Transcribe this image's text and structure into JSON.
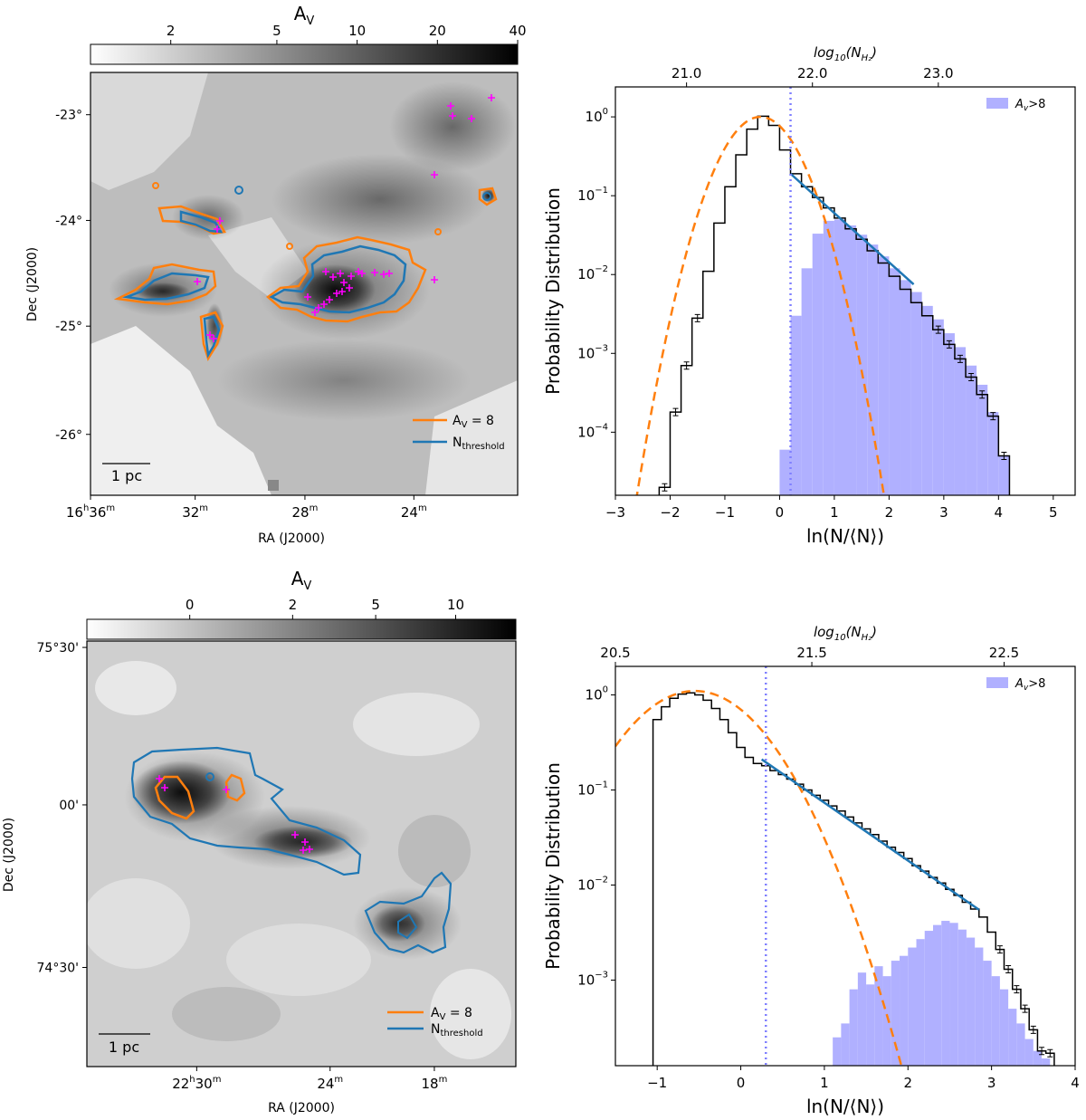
{
  "chart_data": [
    {
      "type": "heatmap",
      "panel": "top-left",
      "colorbar": {
        "title": "A",
        "title_sub": "V",
        "ticks": [
          {
            "v": 2,
            "label": "2"
          },
          {
            "v": 5,
            "label": "5"
          },
          {
            "v": 10,
            "label": "10"
          },
          {
            "v": 20,
            "label": "20"
          },
          {
            "v": 40,
            "label": "40"
          }
        ],
        "range": [
          1,
          40
        ],
        "scale": "log"
      },
      "xlabel": "RA (J2000)",
      "ylabel": "Dec (J2000)",
      "xticks": [
        {
          "main": "16",
          "sup1": "h",
          "mid": "36",
          "sup2": "m",
          "x": 0.0
        },
        {
          "main": "32",
          "sup2": "m",
          "x": 0.245
        },
        {
          "main": "28",
          "sup2": "m",
          "x": 0.502
        },
        {
          "main": "24",
          "sup2": "m",
          "x": 0.757
        }
      ],
      "yticks": [
        {
          "label": "-23°",
          "y": 0.1
        },
        {
          "label": "-24°",
          "y": 0.35
        },
        {
          "label": "-25°",
          "y": 0.6
        },
        {
          "label": "-26°",
          "y": 0.856
        }
      ],
      "legend": [
        {
          "label": "A",
          "sub": "V",
          "tail": " = 8",
          "color": "#ff7f0e"
        },
        {
          "label": "N",
          "sub": "threshold",
          "tail": "",
          "color": "#1f77b4"
        }
      ],
      "scalebar": "1 pc",
      "ysos_color": "#ff00ff"
    },
    {
      "type": "line",
      "panel": "top-right",
      "xlabel": "ln(N/⟨N⟩)",
      "ylabel": "Probability Distribution",
      "top_axis_label": "log",
      "top_axis_sub": "10",
      "top_axis_paren": "(N",
      "top_axis_sub2": "H₂",
      "xlim": [
        -3,
        5.4
      ],
      "ylim_log": [
        -4.8,
        0.38
      ],
      "xticks": [
        -3,
        -2,
        -1,
        0,
        1,
        2,
        3,
        4,
        5
      ],
      "yticks": [
        {
          "exp": 0
        },
        {
          "exp": -1
        },
        {
          "exp": -2
        },
        {
          "exp": -3
        },
        {
          "exp": -4
        }
      ],
      "top_ticks": [
        {
          "label": "21.0",
          "x": -1.7
        },
        {
          "label": "22.0",
          "x": 0.6
        },
        {
          "label": "23.0",
          "x": 2.9
        }
      ],
      "threshold_x": 0.2,
      "legend": {
        "label": "A",
        "sub": "v",
        "tail": ">8"
      },
      "series": [
        {
          "name": "pdf_histogram",
          "x": [
            -2.1,
            -1.9,
            -1.7,
            -1.5,
            -1.3,
            -1.1,
            -0.9,
            -0.7,
            -0.5,
            -0.3,
            -0.1,
            0.1,
            0.3,
            0.5,
            0.7,
            0.9,
            1.1,
            1.3,
            1.5,
            1.7,
            1.9,
            2.1,
            2.3,
            2.5,
            2.7,
            2.9,
            3.1,
            3.3,
            3.5,
            3.7,
            3.9,
            4.1
          ],
          "y": [
            2e-05,
            0.00018,
            0.0007,
            0.0028,
            0.011,
            0.045,
            0.13,
            0.33,
            0.7,
            1.02,
            0.78,
            0.38,
            0.19,
            0.13,
            0.095,
            0.07,
            0.052,
            0.038,
            0.028,
            0.02,
            0.014,
            0.0095,
            0.0065,
            0.0044,
            0.003,
            0.002,
            0.0013,
            0.00085,
            0.0005,
            0.0003,
            0.00016,
            5e-05
          ]
        },
        {
          "name": "lognormal_fit",
          "mu": -0.35,
          "sigma": 0.48,
          "peak": 1.0
        },
        {
          "name": "powerlaw_fit",
          "x": [
            0.2,
            2.45
          ],
          "y": [
            0.19,
            0.0075
          ]
        },
        {
          "name": "av_gt_8",
          "x": [
            0.1,
            0.3,
            0.5,
            0.7,
            0.9,
            1.1,
            1.3,
            1.5,
            1.7,
            1.9,
            2.1,
            2.3,
            2.5,
            2.7,
            2.9,
            3.1,
            3.3,
            3.5,
            3.7,
            3.9,
            4.1
          ],
          "y": [
            6e-05,
            0.003,
            0.012,
            0.033,
            0.048,
            0.05,
            0.042,
            0.032,
            0.024,
            0.017,
            0.012,
            0.0085,
            0.006,
            0.004,
            0.0027,
            0.0018,
            0.0012,
            0.0007,
            0.0004,
            0.00018,
            5e-05
          ]
        }
      ]
    },
    {
      "type": "heatmap",
      "panel": "bottom-left",
      "colorbar": {
        "title": "A",
        "title_sub": "V",
        "ticks": [
          {
            "v": 0,
            "label": "0"
          },
          {
            "v": 2,
            "label": "2"
          },
          {
            "v": 5,
            "label": "5"
          },
          {
            "v": 10,
            "label": "10"
          }
        ],
        "range": [
          -1,
          16
        ]
      },
      "xlabel": "RA (J2000)",
      "ylabel": "Dec (J2000)",
      "xticks": [
        {
          "main": "22",
          "sup1": "h",
          "mid": "30",
          "sup2": "m",
          "x": 0.256
        },
        {
          "main": "24",
          "sup2": "m",
          "x": 0.567
        },
        {
          "main": "18",
          "sup2": "m",
          "x": 0.81
        }
      ],
      "yticks": [
        {
          "label": "75°30'",
          "y": 0.015
        },
        {
          "label": "00'",
          "y": 0.385
        },
        {
          "label": "74°30'",
          "y": 0.767
        }
      ],
      "legend": [
        {
          "label": "A",
          "sub": "V",
          "tail": " = 8",
          "color": "#ff7f0e"
        },
        {
          "label": "N",
          "sub": "threshold",
          "tail": "",
          "color": "#1f77b4"
        }
      ],
      "scalebar": "1 pc",
      "ysos_color": "#ff00ff"
    },
    {
      "type": "line",
      "panel": "bottom-right",
      "xlabel": "ln(N/⟨N⟩)",
      "ylabel": "Probability Distribution",
      "top_axis_label": "log",
      "top_axis_sub": "10",
      "top_axis_paren": "(N",
      "top_axis_sub2": "H₂",
      "xlim": [
        -1.5,
        4.0
      ],
      "ylim_log": [
        -3.9,
        0.3
      ],
      "xticks": [
        -1,
        0,
        1,
        2,
        3,
        4
      ],
      "yticks": [
        {
          "exp": 0
        },
        {
          "exp": -1
        },
        {
          "exp": -2
        },
        {
          "exp": -3
        }
      ],
      "top_ticks": [
        {
          "label": "20.5",
          "x": -1.5
        },
        {
          "label": "21.5",
          "x": 0.85
        },
        {
          "label": "22.5",
          "x": 3.15
        }
      ],
      "threshold_x": 0.3,
      "legend": {
        "label": "A",
        "sub": "v",
        "tail": ">8"
      },
      "series": [
        {
          "name": "pdf_histogram",
          "x": [
            -1.0,
            -0.9,
            -0.8,
            -0.7,
            -0.6,
            -0.5,
            -0.4,
            -0.3,
            -0.2,
            -0.1,
            0.0,
            0.1,
            0.2,
            0.3,
            0.4,
            0.5,
            0.6,
            0.7,
            0.8,
            0.9,
            1.0,
            1.1,
            1.2,
            1.3,
            1.4,
            1.5,
            1.6,
            1.7,
            1.8,
            1.9,
            2.0,
            2.1,
            2.2,
            2.3,
            2.4,
            2.5,
            2.6,
            2.7,
            2.8,
            2.9,
            3.0,
            3.1,
            3.2,
            3.3,
            3.4,
            3.5,
            3.6,
            3.7
          ],
          "y": [
            0.55,
            0.75,
            0.92,
            1.02,
            1.05,
            1.0,
            0.88,
            0.72,
            0.55,
            0.4,
            0.28,
            0.22,
            0.19,
            0.18,
            0.16,
            0.145,
            0.13,
            0.115,
            0.1,
            0.088,
            0.078,
            0.068,
            0.06,
            0.052,
            0.045,
            0.039,
            0.034,
            0.029,
            0.025,
            0.022,
            0.019,
            0.016,
            0.014,
            0.012,
            0.0105,
            0.009,
            0.0078,
            0.0066,
            0.0056,
            0.0046,
            0.0032,
            0.0021,
            0.0013,
            0.0008,
            0.0005,
            0.0003,
            0.00018,
            0.00017
          ]
        },
        {
          "name": "lognormal_fit",
          "mu": -0.55,
          "sigma": 0.58,
          "peak": 1.1
        },
        {
          "name": "powerlaw_fit",
          "x": [
            0.25,
            2.85
          ],
          "y": [
            0.21,
            0.0055
          ]
        },
        {
          "name": "av_gt_8",
          "x": [
            1.15,
            1.25,
            1.35,
            1.45,
            1.55,
            1.65,
            1.75,
            1.85,
            1.95,
            2.05,
            2.15,
            2.25,
            2.35,
            2.45,
            2.55,
            2.65,
            2.75,
            2.85,
            2.95,
            3.05,
            3.15,
            3.25,
            3.35,
            3.45,
            3.55,
            3.65
          ],
          "y": [
            0.00025,
            0.00035,
            0.0008,
            0.0012,
            0.0009,
            0.0014,
            0.0011,
            0.0016,
            0.0018,
            0.0022,
            0.0027,
            0.0033,
            0.0038,
            0.0042,
            0.004,
            0.0034,
            0.0028,
            0.0022,
            0.0016,
            0.0011,
            0.0008,
            0.0005,
            0.00035,
            0.00024,
            0.00018,
            0.00015
          ]
        }
      ]
    }
  ]
}
